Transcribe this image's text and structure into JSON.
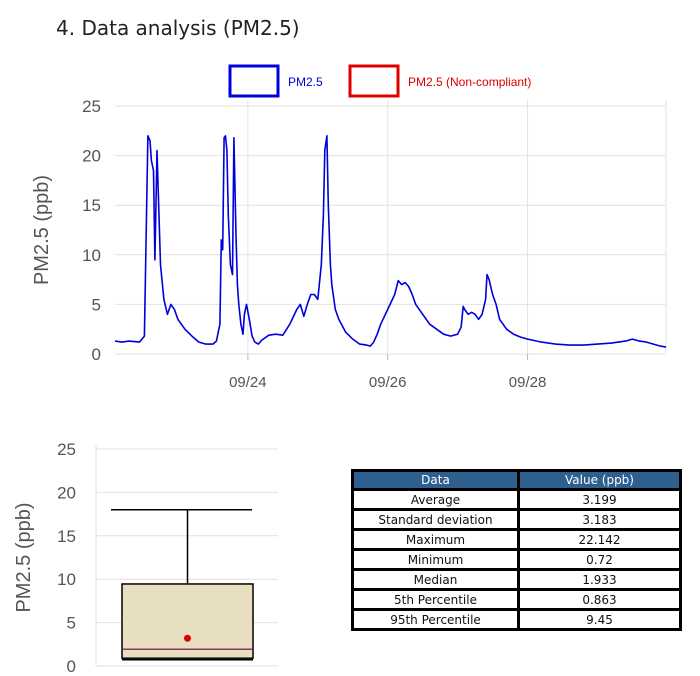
{
  "header": {
    "title": "4. Data analysis (PM2.5)"
  },
  "chart_data": [
    {
      "type": "line",
      "legend": [
        {
          "name": "PM2.5",
          "color": "#0000dd"
        },
        {
          "name": "PM2.5 (Non-compliant)",
          "color": "#dd0000"
        }
      ],
      "ylabel": "PM2.5 (ppb)",
      "ylim": [
        0,
        25
      ],
      "yticks": [
        0,
        5,
        10,
        15,
        20,
        25
      ],
      "xlim": [
        22.1,
        29.98
      ],
      "xticks": [
        24,
        26,
        28
      ],
      "xtick_labels": [
        "09/24",
        "09/26",
        "09/28"
      ],
      "xgrid_extra": [
        29.98
      ],
      "grid": true,
      "series": [
        {
          "name": "PM2.5",
          "color": "#0000dd",
          "x": [
            22.1,
            22.2,
            22.3,
            22.45,
            22.52,
            22.55,
            22.57,
            22.6,
            22.62,
            22.65,
            22.67,
            22.7,
            22.75,
            22.8,
            22.85,
            22.9,
            22.95,
            23.0,
            23.1,
            23.2,
            23.3,
            23.4,
            23.5,
            23.55,
            23.6,
            23.62,
            23.64,
            23.66,
            23.68,
            23.7,
            23.72,
            23.75,
            23.78,
            23.8,
            23.83,
            23.85,
            23.87,
            23.9,
            23.93,
            23.95,
            23.98,
            24.02,
            24.06,
            24.1,
            24.15,
            24.2,
            24.3,
            24.4,
            24.5,
            24.6,
            24.7,
            24.75,
            24.8,
            24.85,
            24.9,
            24.95,
            25.0,
            25.05,
            25.08,
            25.1,
            25.13,
            25.15,
            25.18,
            25.2,
            25.25,
            25.3,
            25.4,
            25.5,
            25.6,
            25.7,
            25.75,
            25.8,
            25.85,
            25.9,
            26.0,
            26.1,
            26.15,
            26.2,
            26.25,
            26.3,
            26.35,
            26.4,
            26.5,
            26.6,
            26.7,
            26.8,
            26.9,
            27.0,
            27.05,
            27.08,
            27.1,
            27.15,
            27.2,
            27.25,
            27.3,
            27.35,
            27.4,
            27.42,
            27.45,
            27.5,
            27.55,
            27.6,
            27.7,
            27.8,
            27.9,
            28.0,
            28.2,
            28.4,
            28.6,
            28.8,
            29.0,
            29.2,
            29.4,
            29.5,
            29.6,
            29.7,
            29.8,
            29.9,
            29.98
          ],
          "y": [
            1.3,
            1.2,
            1.3,
            1.2,
            1.8,
            14.0,
            22.0,
            21.5,
            19.5,
            18.5,
            9.5,
            20.5,
            9.0,
            5.5,
            4.0,
            5.0,
            4.5,
            3.5,
            2.5,
            1.8,
            1.2,
            1.0,
            1.0,
            1.3,
            3.0,
            11.5,
            10.5,
            21.8,
            22.0,
            20.5,
            14.0,
            9.0,
            8.0,
            21.8,
            12.0,
            7.0,
            5.0,
            3.0,
            2.0,
            4.0,
            5.0,
            3.5,
            1.8,
            1.2,
            1.0,
            1.4,
            1.9,
            2.0,
            1.9,
            3.0,
            4.5,
            5.0,
            3.8,
            5.0,
            6.0,
            6.0,
            5.5,
            9.0,
            14.0,
            20.5,
            22.0,
            15.0,
            9.0,
            7.0,
            4.5,
            3.5,
            2.2,
            1.5,
            1.0,
            0.9,
            0.8,
            1.2,
            2.0,
            3.0,
            4.5,
            6.0,
            7.4,
            7.0,
            7.2,
            6.8,
            6.0,
            5.0,
            4.0,
            3.0,
            2.5,
            2.0,
            1.8,
            2.0,
            2.7,
            4.8,
            4.5,
            4.0,
            4.2,
            4.0,
            3.5,
            4.0,
            5.5,
            8.0,
            7.5,
            6.0,
            5.0,
            3.5,
            2.5,
            2.0,
            1.7,
            1.5,
            1.2,
            1.0,
            0.9,
            0.9,
            1.0,
            1.1,
            1.3,
            1.5,
            1.3,
            1.2,
            1.0,
            0.8,
            0.7
          ]
        }
      ]
    },
    {
      "type": "box",
      "ylabel": "PM2.5 (ppb)",
      "ylim": [
        0,
        25
      ],
      "yticks": [
        0,
        5,
        10,
        15,
        20,
        25
      ],
      "grid": true,
      "whisker_low": 0.72,
      "q1": 0.9,
      "median": 1.933,
      "q3": 9.45,
      "whisker_high": 18.0,
      "mean": 3.199,
      "box_color": "#e8dfc0",
      "median_color": "#8a3a6a",
      "mean_color": "#dd0000"
    }
  ],
  "stats_table": {
    "headers": [
      "Data",
      "Value (ppb)"
    ],
    "rows": [
      [
        "Average",
        "3.199"
      ],
      [
        "Standard deviation",
        "3.183"
      ],
      [
        "Maximum",
        "22.142"
      ],
      [
        "Minimum",
        "0.72"
      ],
      [
        "Median",
        "1.933"
      ],
      [
        "5th Percentile",
        "0.863"
      ],
      [
        "95th Percentile",
        "9.45"
      ]
    ]
  }
}
